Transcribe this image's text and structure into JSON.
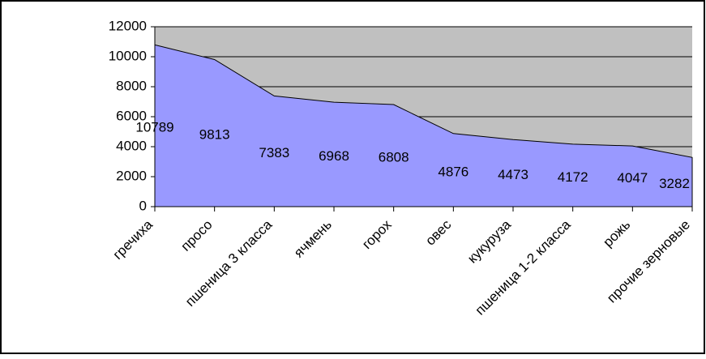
{
  "chart_data": {
    "type": "area",
    "categories": [
      "гречиха",
      "просо",
      "пшеница 3 класса",
      "ячмень",
      "горох",
      "овес",
      "кукуруза",
      "пшеница 1-2 класса",
      "рожь",
      "прочие зерновые"
    ],
    "values": [
      10789,
      9813,
      7383,
      6968,
      6808,
      4876,
      4473,
      4172,
      4047,
      3282
    ],
    "color": "#9999ff",
    "plot_background": "#c0c0c0",
    "ylim": [
      0,
      12000
    ],
    "yticks": [
      0,
      2000,
      4000,
      6000,
      8000,
      10000,
      12000
    ],
    "grid": true
  }
}
